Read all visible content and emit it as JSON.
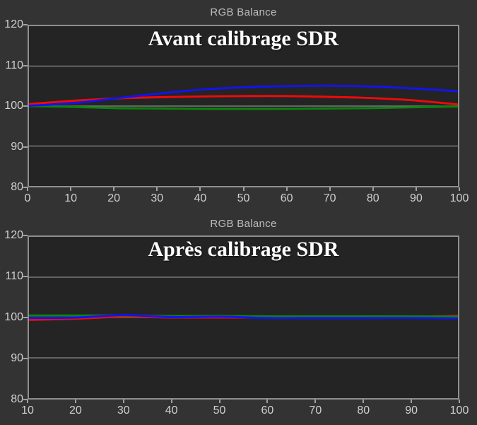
{
  "style": {
    "page_bg": "#333333",
    "plot_bg": "#242424",
    "plot_border": "#8f8f8f",
    "grid_color": "#7a7a7a",
    "tick_label_color": "#d0d0d0",
    "title_color": "#bdbdbd",
    "annotation_color": "#ffffff"
  },
  "chart_data": [
    {
      "type": "line",
      "title": "RGB Balance",
      "annotation": "Avant calibrage SDR",
      "xlabel": "",
      "ylabel": "",
      "xlim": [
        0,
        100
      ],
      "ylim": [
        80,
        120
      ],
      "x_ticks": [
        0,
        10,
        20,
        30,
        40,
        50,
        60,
        70,
        80,
        90,
        100
      ],
      "y_ticks": [
        80,
        90,
        100,
        110,
        120
      ],
      "gridlines": [
        90,
        100,
        110
      ],
      "grid": "horizontal-only",
      "legend": "none",
      "x": [
        0,
        10,
        20,
        30,
        40,
        50,
        60,
        70,
        80,
        90,
        100
      ],
      "series": [
        {
          "name": "red",
          "color": "#f00a0a",
          "values": [
            100.5,
            101.3,
            101.9,
            102.2,
            102.4,
            102.5,
            102.5,
            102.3,
            102.0,
            101.4,
            100.4
          ]
        },
        {
          "name": "green",
          "color": "#0d840d",
          "values": [
            100.0,
            99.8,
            99.5,
            99.4,
            99.3,
            99.3,
            99.3,
            99.4,
            99.5,
            99.7,
            99.9
          ]
        },
        {
          "name": "blue",
          "color": "#1313ef",
          "values": [
            100.1,
            100.7,
            101.9,
            103.1,
            104.1,
            104.7,
            105.0,
            105.1,
            104.9,
            104.4,
            103.7
          ]
        }
      ]
    },
    {
      "type": "line",
      "title": "RGB Balance",
      "annotation": "Après calibrage SDR",
      "xlabel": "",
      "ylabel": "",
      "xlim": [
        10,
        100
      ],
      "ylim": [
        80,
        120
      ],
      "x_ticks": [
        10,
        20,
        30,
        40,
        50,
        60,
        70,
        80,
        90,
        100
      ],
      "y_ticks": [
        80,
        90,
        100,
        110,
        120
      ],
      "gridlines": [
        90,
        100,
        110
      ],
      "grid": "horizontal-only",
      "legend": "none",
      "x": [
        10,
        20,
        30,
        40,
        50,
        60,
        70,
        80,
        90,
        100
      ],
      "series": [
        {
          "name": "red",
          "color": "#f00a0a",
          "values": [
            99.4,
            99.7,
            100.2,
            100.0,
            100.0,
            100.0,
            100.1,
            100.1,
            100.2,
            100.4
          ]
        },
        {
          "name": "green",
          "color": "#0d840d",
          "values": [
            100.5,
            100.5,
            100.5,
            100.4,
            100.4,
            100.3,
            100.3,
            100.3,
            100.3,
            100.2
          ]
        },
        {
          "name": "blue",
          "color": "#1313ef",
          "values": [
            99.9,
            100.0,
            100.6,
            100.1,
            100.2,
            99.9,
            99.9,
            99.9,
            99.9,
            99.8
          ]
        }
      ]
    }
  ]
}
